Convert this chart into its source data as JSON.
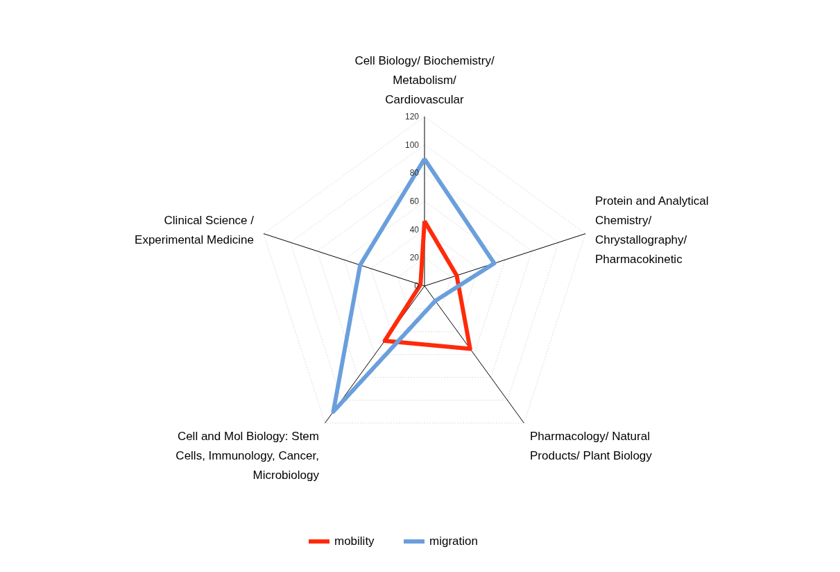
{
  "chart_data": {
    "type": "radar",
    "categories": [
      "Cell Biology/ Biochemistry/\nMetabolism/\nCardiovascular",
      "Protein and Analytical\nChemistry/\nChrystallography/\nPharmacokinetic",
      "Pharmacology/    Natural\nProducts/    Plant Biology",
      "Cell and Mol Biology: Stem\nCells,  Immunology, Cancer,\nMicrobiology",
      "Clinical Science /\nExperimental Medicine"
    ],
    "series": [
      {
        "name": "mobility",
        "color": "#ff2a0a",
        "values": [
          46,
          24,
          55,
          48,
          3
        ]
      },
      {
        "name": "migration",
        "color": "#6a9fdc",
        "values": [
          90,
          52,
          13,
          110,
          48
        ]
      }
    ],
    "ylim": [
      0,
      120
    ],
    "yticks": [
      0,
      20,
      40,
      60,
      80,
      100,
      120
    ],
    "grid": true,
    "legend": "bottom",
    "marker": "none",
    "line_style": "solid"
  }
}
